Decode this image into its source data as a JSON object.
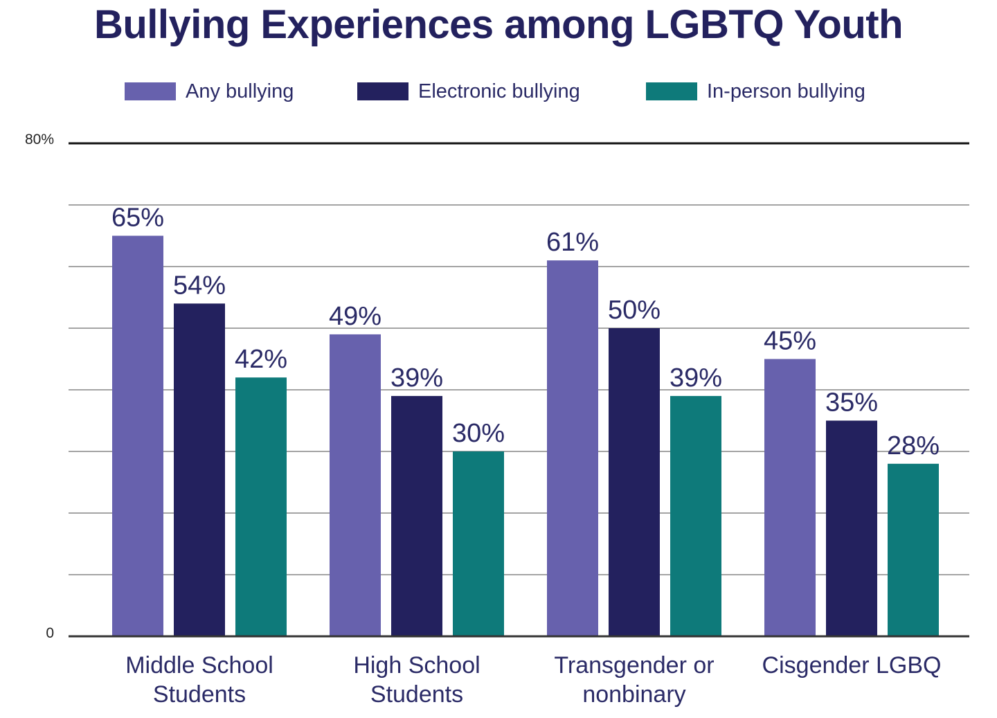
{
  "chart_data": {
    "type": "bar",
    "title": "Bullying Experiences among LGBTQ Youth",
    "categories": [
      [
        "Middle School",
        "Students"
      ],
      [
        "High School",
        "Students"
      ],
      [
        "Transgender or",
        "nonbinary"
      ],
      [
        "Cisgender LGBQ"
      ]
    ],
    "series": [
      {
        "name": "Any bullying",
        "color": "#6761ad",
        "values": [
          65,
          49,
          61,
          45
        ],
        "labels": [
          "65%",
          "49%",
          "61%",
          "45%"
        ]
      },
      {
        "name": "Electronic bullying",
        "color": "#23215e",
        "values": [
          54,
          39,
          50,
          35
        ],
        "labels": [
          "54%",
          "39%",
          "50%",
          "35%"
        ]
      },
      {
        "name": "In-person bullying",
        "color": "#0e7a7a",
        "values": [
          42,
          30,
          39,
          28
        ],
        "labels": [
          "42%",
          "30%",
          "39%",
          "28%"
        ]
      }
    ],
    "ylim": [
      0,
      80
    ],
    "yticks": [
      {
        "value": 80,
        "label": "80%"
      },
      {
        "value": 0,
        "label": "0"
      }
    ],
    "gridlines": [
      10,
      20,
      30,
      40,
      50,
      60,
      70
    ],
    "grid": true,
    "legend": "top"
  }
}
